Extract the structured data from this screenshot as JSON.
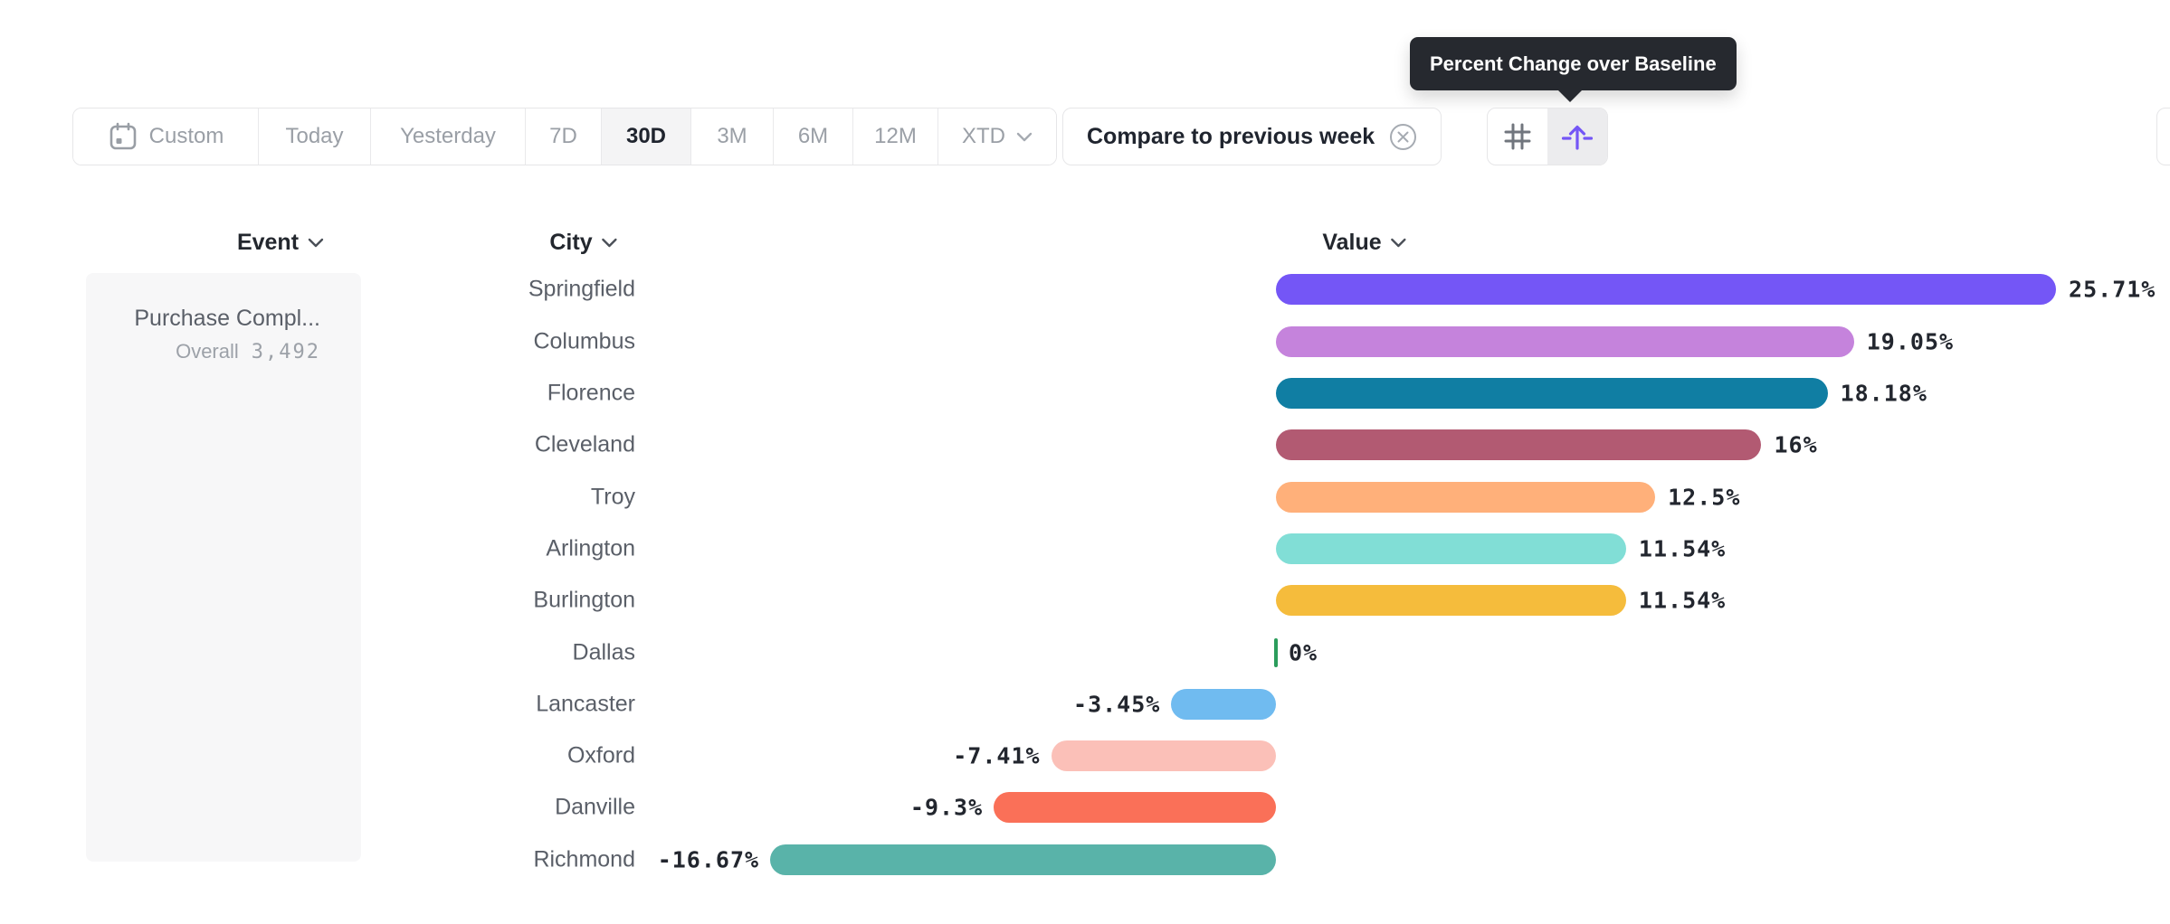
{
  "tooltip": {
    "text": "Percent Change over Baseline"
  },
  "toolbar": {
    "items": [
      {
        "id": "custom",
        "label": "Custom",
        "icon": "calendar-icon",
        "active": false
      },
      {
        "id": "today",
        "label": "Today",
        "active": false
      },
      {
        "id": "yesterday",
        "label": "Yesterday",
        "active": false
      },
      {
        "id": "7d",
        "label": "7D",
        "active": false
      },
      {
        "id": "30d",
        "label": "30D",
        "active": true
      },
      {
        "id": "3m",
        "label": "3M",
        "active": false
      },
      {
        "id": "6m",
        "label": "6M",
        "active": false
      },
      {
        "id": "12m",
        "label": "12M",
        "active": false
      },
      {
        "id": "xtd",
        "label": "XTD",
        "active": false,
        "chevron": true
      }
    ]
  },
  "compare_chip": {
    "label": "Compare to previous week",
    "close_icon": "circle-x-icon"
  },
  "view_toggle": {
    "buttons": [
      {
        "id": "grid-view",
        "icon": "grid-icon",
        "active": false
      },
      {
        "id": "baseline-view",
        "icon": "arrow-up-baseline-icon",
        "active": true
      }
    ],
    "accent_color": "#7456F6"
  },
  "columns": [
    {
      "id": "event",
      "label": "Event"
    },
    {
      "id": "city",
      "label": "City"
    },
    {
      "id": "value",
      "label": "Value"
    }
  ],
  "event_panel": {
    "event_name": "Purchase Compl...",
    "overall_label": "Overall",
    "overall_value": "3,492"
  },
  "chart_data": {
    "type": "bar",
    "orientation": "horizontal",
    "title": "Percent Change over Baseline",
    "value_unit": "percent",
    "categories": [
      "Springfield",
      "Columbus",
      "Florence",
      "Cleveland",
      "Troy",
      "Arlington",
      "Burlington",
      "Dallas",
      "Lancaster",
      "Oxford",
      "Danville",
      "Richmond"
    ],
    "values": [
      25.71,
      19.05,
      18.18,
      16,
      12.5,
      11.54,
      11.54,
      0,
      -3.45,
      -7.41,
      -9.3,
      -16.67
    ],
    "value_labels": [
      "25.71%",
      "19.05%",
      "18.18%",
      "16%",
      "12.5%",
      "11.54%",
      "11.54%",
      "0%",
      "-3.45%",
      "-7.41%",
      "-9.3%",
      "-16.67%"
    ],
    "bar_colors": [
      "#7456F6",
      "#C583DC",
      "#107EA3",
      "#B25A72",
      "#FFB07A",
      "#81DED6",
      "#F5BC3C",
      "#2B9D5C",
      "#70BBF0",
      "#FBC0B8",
      "#FA7058",
      "#59B3A9"
    ],
    "zero_baseline_color": "#2B9D5C",
    "grid": false,
    "legend": false
  },
  "colors": {
    "accent": "#7456F6",
    "border": "#E6E6E8",
    "text_dark": "#1F242E",
    "text_gray": "#9A9FA6",
    "tooltip_bg": "#26292F",
    "panel_bg": "#F7F7F8"
  }
}
